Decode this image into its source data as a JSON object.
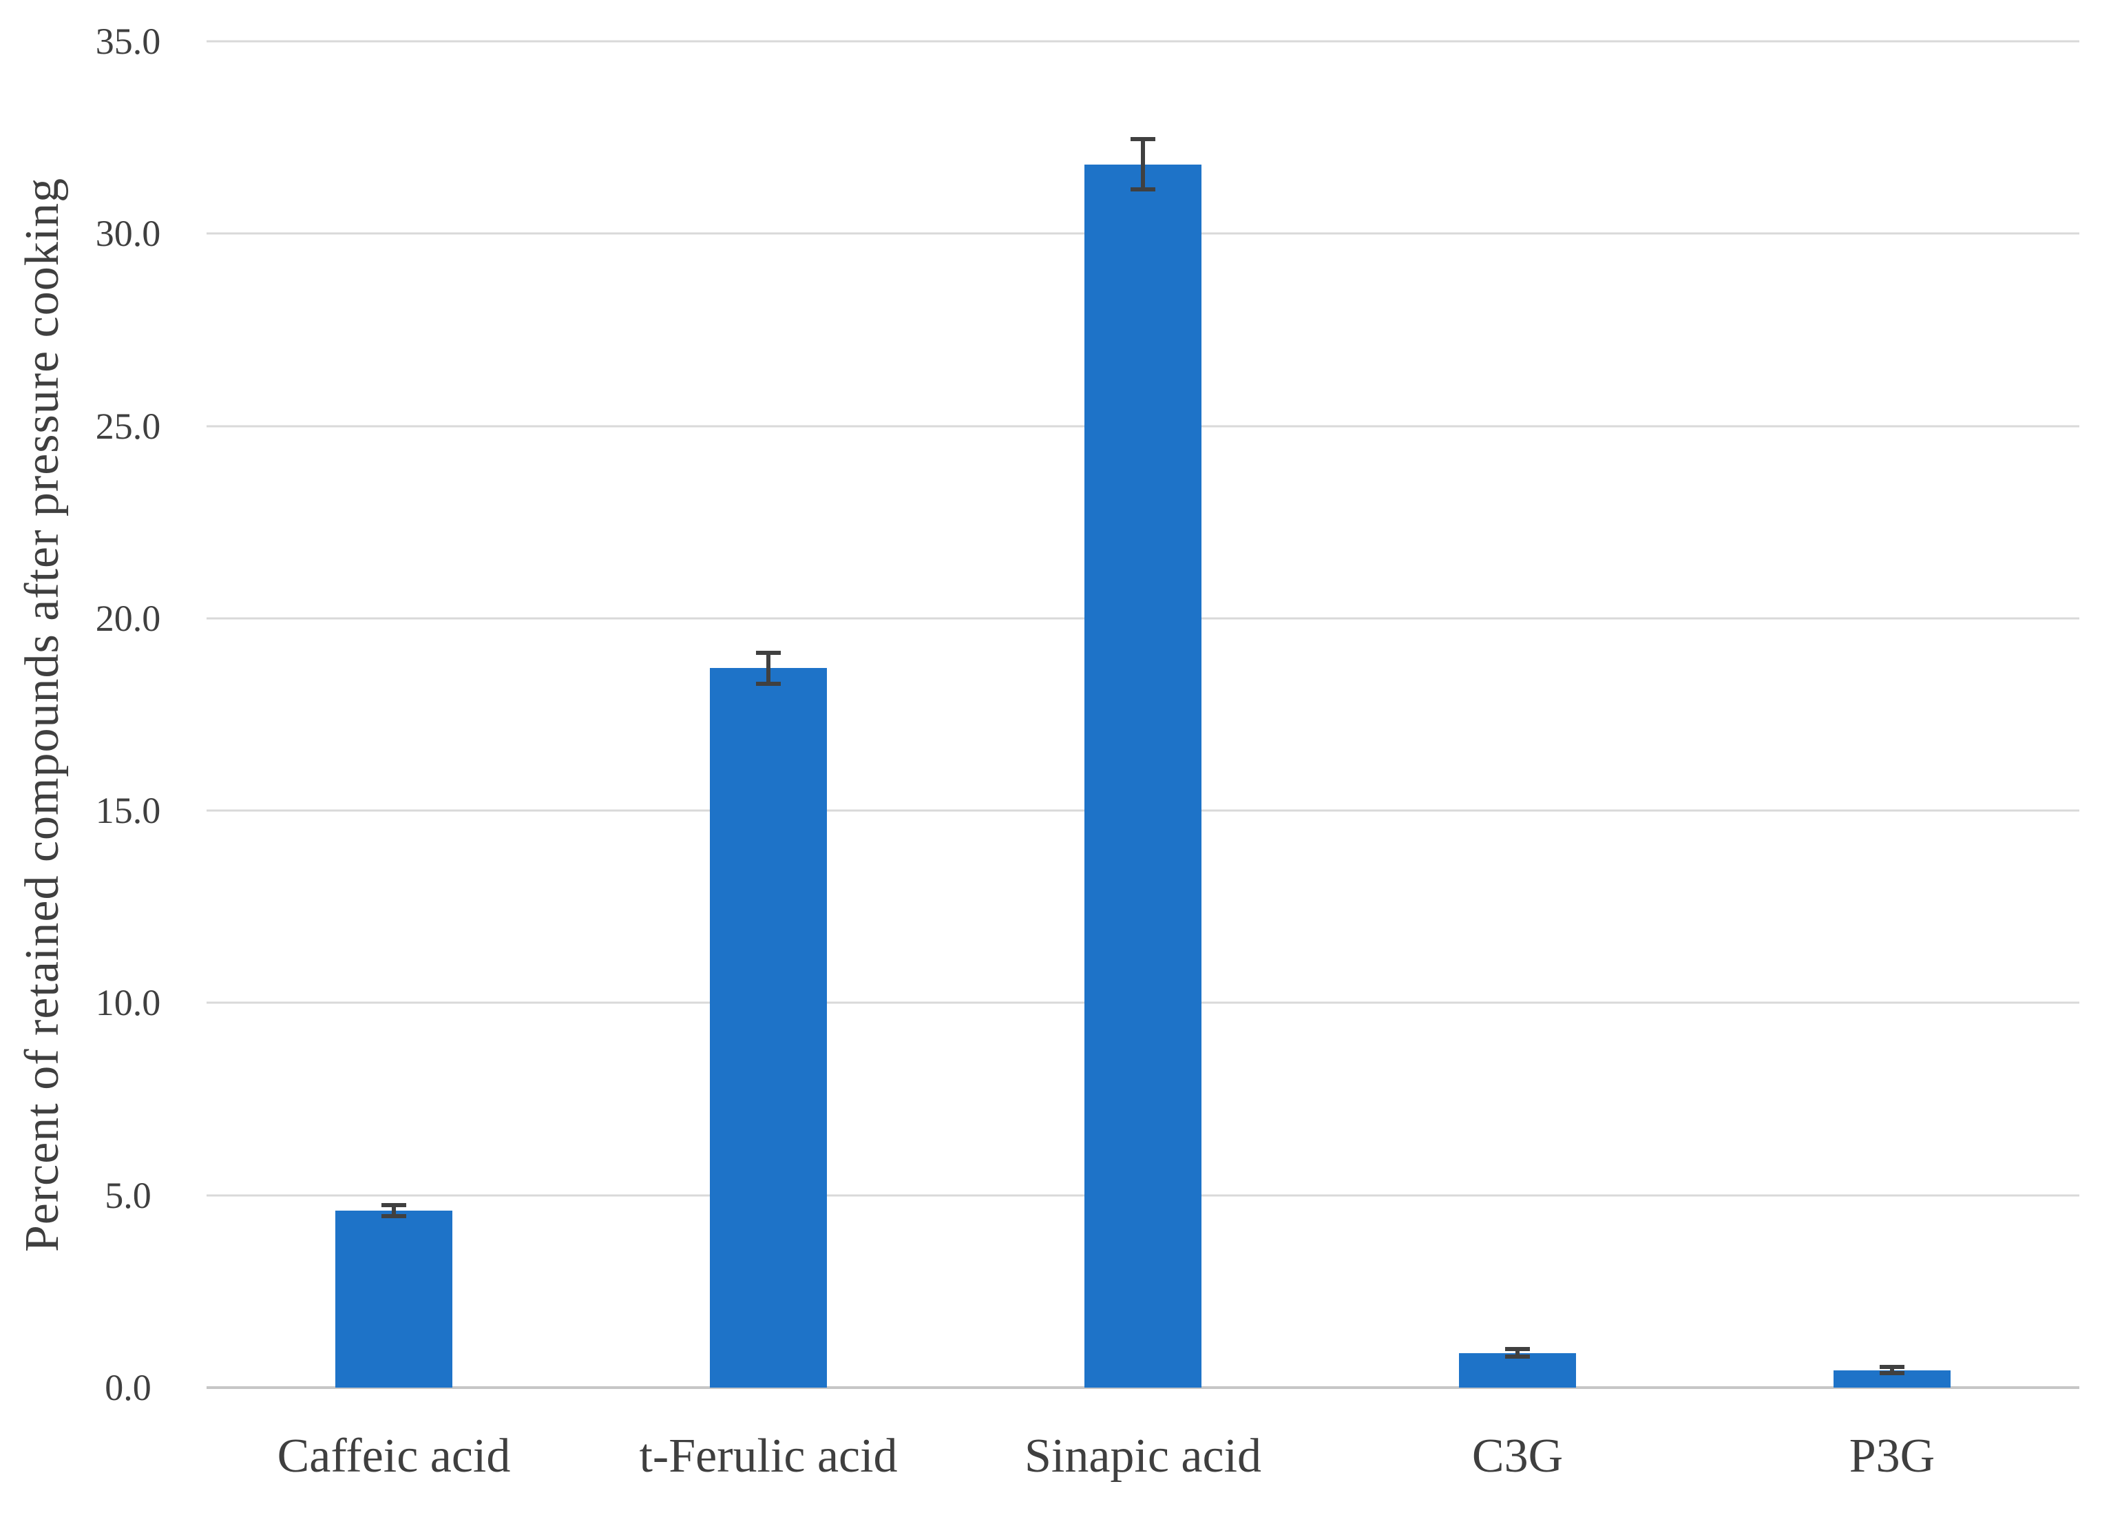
{
  "figure": {
    "background_color": "#ffffff",
    "text_color": "#3f3f3f",
    "gridline_color": "#d9d9d9",
    "baseline_color": "#c6c6c6",
    "bar_color": "#1e73c8",
    "error_bar_color": "#404040"
  },
  "chart_data": {
    "type": "bar",
    "title": "",
    "xlabel": "",
    "ylabel": "Percent of retained compounds after pressure cooking",
    "ylim": [
      0,
      35
    ],
    "ytick_step": 5,
    "yticks": [
      "0.0",
      "5.0",
      "10.0",
      "15.0",
      "20.0",
      "25.0",
      "30.0",
      "35.0"
    ],
    "grid": "horizontal",
    "legend": "none",
    "categories": [
      "Caffeic acid",
      "t-Ferulic acid",
      "Sinapic acid",
      "C3G",
      "P3G"
    ],
    "values": [
      4.6,
      18.7,
      31.8,
      0.9,
      0.45
    ],
    "error_bars": [
      0.15,
      0.4,
      0.65,
      0.1,
      0.08
    ]
  }
}
